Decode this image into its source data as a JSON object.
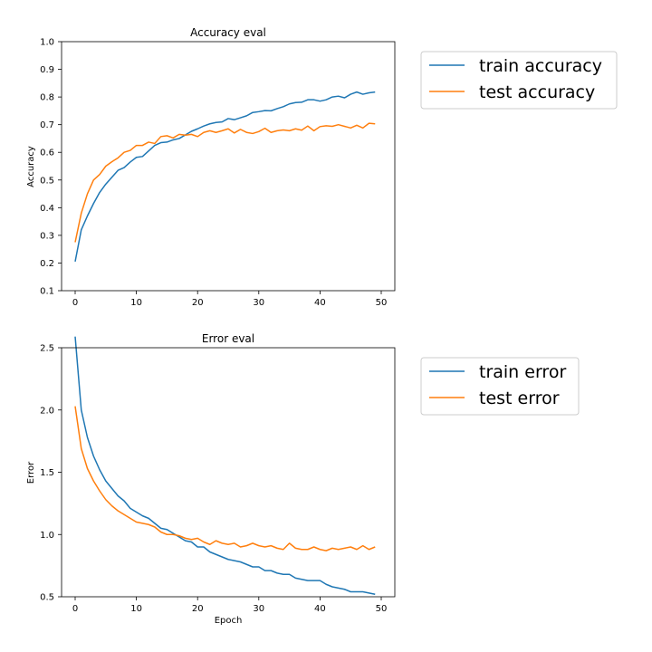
{
  "colors": {
    "train": "#1f77b4",
    "test": "#ff7f0e"
  },
  "chart_data": [
    {
      "type": "line",
      "title": "Accuracy eval",
      "xlabel": "",
      "ylabel": "Accuracy",
      "xlim": [
        0,
        50
      ],
      "ylim": [
        0.1,
        1.0
      ],
      "xticks": [
        0,
        10,
        20,
        30,
        40,
        50
      ],
      "xtick_labels": [
        "0",
        "10",
        "20",
        "30",
        "40",
        "50"
      ],
      "yticks": [
        0.1,
        0.2,
        0.3,
        0.4,
        0.5,
        0.6,
        0.7,
        0.8,
        0.9,
        1.0
      ],
      "ytick_labels": [
        "0.1",
        "0.2",
        "0.3",
        "0.4",
        "0.5",
        "0.6",
        "0.7",
        "0.8",
        "0.9",
        "1.0"
      ],
      "grid": false,
      "legend": "outside-right",
      "x": [
        0,
        1,
        2,
        3,
        4,
        5,
        6,
        7,
        8,
        9,
        10,
        11,
        12,
        13,
        14,
        15,
        16,
        17,
        18,
        19,
        20,
        21,
        22,
        23,
        24,
        25,
        26,
        27,
        28,
        29,
        30,
        31,
        32,
        33,
        34,
        35,
        36,
        37,
        38,
        39,
        40,
        41,
        42,
        43,
        44,
        45,
        46,
        47,
        48,
        49
      ],
      "series": [
        {
          "name": "train accuracy",
          "color": "#1f77b4",
          "values": [
            0.205,
            0.32,
            0.37,
            0.415,
            0.455,
            0.485,
            0.51,
            0.535,
            0.545,
            0.565,
            0.582,
            0.585,
            0.605,
            0.625,
            0.635,
            0.637,
            0.645,
            0.65,
            0.663,
            0.676,
            0.685,
            0.695,
            0.703,
            0.708,
            0.71,
            0.722,
            0.718,
            0.725,
            0.732,
            0.744,
            0.747,
            0.751,
            0.75,
            0.758,
            0.765,
            0.775,
            0.78,
            0.781,
            0.79,
            0.79,
            0.785,
            0.79,
            0.8,
            0.803,
            0.797,
            0.81,
            0.818,
            0.81,
            0.815,
            0.818
          ]
        },
        {
          "name": "test accuracy",
          "color": "#ff7f0e",
          "values": [
            0.275,
            0.38,
            0.45,
            0.5,
            0.52,
            0.55,
            0.566,
            0.58,
            0.6,
            0.607,
            0.625,
            0.625,
            0.637,
            0.632,
            0.657,
            0.66,
            0.652,
            0.665,
            0.662,
            0.665,
            0.657,
            0.672,
            0.678,
            0.672,
            0.678,
            0.685,
            0.67,
            0.683,
            0.672,
            0.668,
            0.675,
            0.687,
            0.672,
            0.678,
            0.681,
            0.678,
            0.685,
            0.68,
            0.695,
            0.678,
            0.693,
            0.696,
            0.694,
            0.7,
            0.694,
            0.688,
            0.698,
            0.688,
            0.705,
            0.703
          ]
        }
      ]
    },
    {
      "type": "line",
      "title": "Error eval",
      "xlabel": "Epoch",
      "ylabel": "Error",
      "xlim": [
        0,
        50
      ],
      "ylim": [
        0.5,
        2.5
      ],
      "xticks": [
        0,
        10,
        20,
        30,
        40,
        50
      ],
      "xtick_labels": [
        "0",
        "10",
        "20",
        "30",
        "40",
        "50"
      ],
      "yticks": [
        0.5,
        1.0,
        1.5,
        2.0,
        2.5
      ],
      "ytick_labels": [
        "0.5",
        "1.0",
        "1.5",
        "2.0",
        "2.5"
      ],
      "grid": false,
      "legend": "outside-right",
      "x": [
        0,
        1,
        2,
        3,
        4,
        5,
        6,
        7,
        8,
        9,
        10,
        11,
        12,
        13,
        14,
        15,
        16,
        17,
        18,
        19,
        20,
        21,
        22,
        23,
        24,
        25,
        26,
        27,
        28,
        29,
        30,
        31,
        32,
        33,
        34,
        35,
        36,
        37,
        38,
        39,
        40,
        41,
        42,
        43,
        44,
        45,
        46,
        47,
        48,
        49
      ],
      "series": [
        {
          "name": "train error",
          "color": "#1f77b4",
          "values": [
            2.59,
            2.0,
            1.78,
            1.63,
            1.52,
            1.43,
            1.37,
            1.31,
            1.27,
            1.21,
            1.18,
            1.15,
            1.13,
            1.09,
            1.05,
            1.04,
            1.01,
            0.98,
            0.95,
            0.94,
            0.9,
            0.9,
            0.86,
            0.84,
            0.82,
            0.8,
            0.79,
            0.78,
            0.76,
            0.74,
            0.74,
            0.71,
            0.71,
            0.69,
            0.68,
            0.68,
            0.65,
            0.64,
            0.63,
            0.63,
            0.63,
            0.6,
            0.58,
            0.57,
            0.56,
            0.54,
            0.54,
            0.54,
            0.53,
            0.52
          ]
        },
        {
          "name": "test error",
          "color": "#ff7f0e",
          "values": [
            2.03,
            1.69,
            1.53,
            1.43,
            1.35,
            1.28,
            1.23,
            1.19,
            1.16,
            1.13,
            1.1,
            1.09,
            1.08,
            1.06,
            1.02,
            1.0,
            1.0,
            0.99,
            0.97,
            0.96,
            0.97,
            0.94,
            0.92,
            0.95,
            0.93,
            0.92,
            0.93,
            0.9,
            0.91,
            0.93,
            0.91,
            0.9,
            0.91,
            0.89,
            0.88,
            0.93,
            0.89,
            0.88,
            0.88,
            0.9,
            0.88,
            0.87,
            0.89,
            0.88,
            0.89,
            0.9,
            0.88,
            0.91,
            0.88,
            0.9
          ]
        }
      ]
    }
  ]
}
